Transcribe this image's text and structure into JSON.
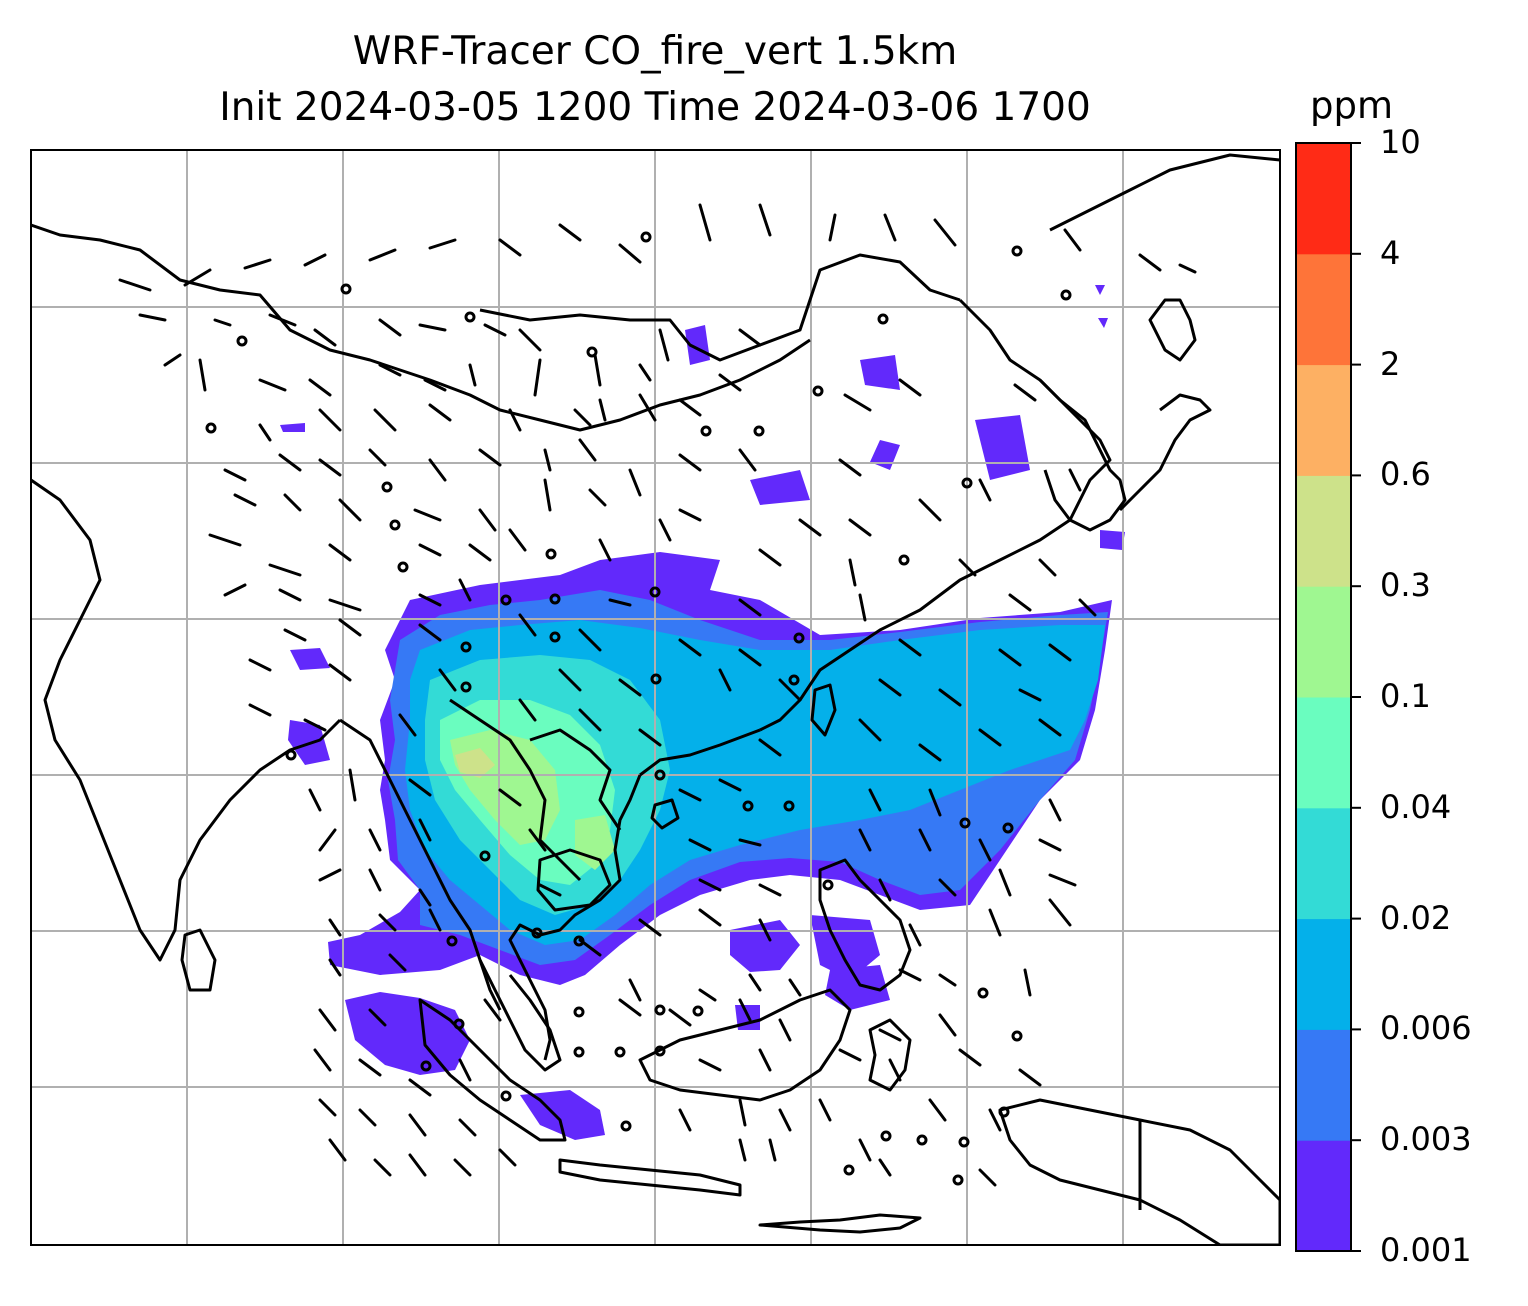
{
  "title": {
    "line1": "WRF-Tracer CO_fire_vert 1.5km",
    "line2": "Init 2024-03-05 1200 Time 2024-03-06 1700"
  },
  "colorbar": {
    "unit": "ppm",
    "levels": [
      "0.001",
      "0.003",
      "0.006",
      "0.02",
      "0.04",
      "0.1",
      "0.3",
      "0.6",
      "2",
      "4",
      "10"
    ],
    "colors": [
      "#6229fb",
      "#3679f5",
      "#04b0ea",
      "#33dbd6",
      "#6afdbf",
      "#9ff791",
      "#cde28a",
      "#fdb063",
      "#fe7439",
      "#ff2b16"
    ]
  },
  "map": {
    "gridlines": true,
    "gridline_color": "#b0b0b0",
    "coastline_color": "#000000",
    "wind_barb_color": "#000000"
  }
}
